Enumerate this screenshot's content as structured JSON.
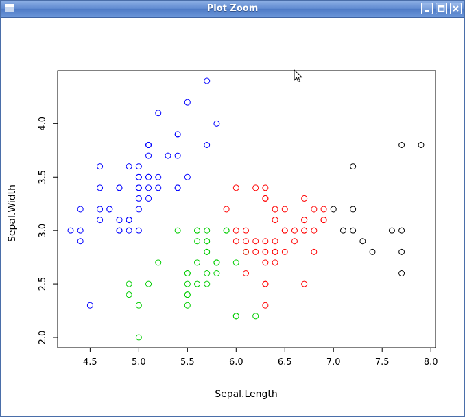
{
  "window": {
    "title": "Plot Zoom"
  },
  "chart_data": {
    "type": "scatter",
    "title": "",
    "xlabel": "Sepal.Length",
    "ylabel": "Sepal.Width",
    "xlim": [
      4.3,
      7.9
    ],
    "ylim": [
      2.0,
      4.4
    ],
    "xticks": [
      4.5,
      5.0,
      5.5,
      6.0,
      6.5,
      7.0,
      7.5,
      8.0
    ],
    "yticks": [
      2.0,
      2.5,
      3.0,
      3.5,
      4.0
    ],
    "xtick_labels": [
      "4.5",
      "5.0",
      "5.5",
      "6.0",
      "6.5",
      "7.0",
      "7.5",
      "8.0"
    ],
    "ytick_labels": [
      "2.0",
      "2.5",
      "3.0",
      "3.5",
      "4.0"
    ],
    "grid": false,
    "legend": "none",
    "series": [
      {
        "color": "#0000ff",
        "x": [
          4.3,
          4.4,
          4.4,
          4.4,
          4.5,
          4.6,
          4.6,
          4.6,
          4.6,
          4.7,
          4.7,
          4.8,
          4.8,
          4.8,
          4.8,
          4.8,
          4.9,
          4.9,
          4.9,
          4.9,
          5.0,
          5.0,
          5.0,
          5.0,
          5.0,
          5.0,
          5.0,
          5.0,
          5.1,
          5.1,
          5.1,
          5.1,
          5.1,
          5.1,
          5.1,
          5.1,
          5.2,
          5.2,
          5.2,
          5.3,
          5.4,
          5.4,
          5.4,
          5.4,
          5.4,
          5.5,
          5.5,
          5.7,
          5.7,
          5.8
        ],
        "y": [
          3.0,
          2.9,
          3.0,
          3.2,
          2.3,
          3.1,
          3.4,
          3.6,
          3.2,
          3.2,
          3.2,
          3.4,
          3.0,
          3.4,
          3.0,
          3.1,
          3.0,
          3.1,
          3.6,
          3.1,
          3.6,
          3.4,
          3.0,
          3.4,
          3.2,
          3.5,
          3.5,
          3.3,
          3.5,
          3.5,
          3.8,
          3.7,
          3.3,
          3.8,
          3.8,
          3.4,
          3.5,
          3.4,
          4.1,
          3.7,
          3.9,
          3.7,
          3.9,
          3.4,
          3.4,
          4.2,
          3.5,
          4.4,
          3.8,
          4.0
        ]
      },
      {
        "color": "#00cd00",
        "x": [
          4.9,
          4.9,
          5.0,
          5.0,
          5.1,
          5.2,
          5.4,
          5.5,
          5.5,
          5.5,
          5.5,
          5.5,
          5.5,
          5.6,
          5.6,
          5.6,
          5.6,
          5.6,
          5.7,
          5.7,
          5.7,
          5.7,
          5.7,
          5.7,
          5.7,
          5.8,
          5.8,
          5.8,
          5.8,
          5.9,
          5.9,
          6.0,
          6.0,
          6.0,
          6.1,
          6.2
        ],
        "y": [
          2.5,
          2.4,
          2.0,
          2.3,
          2.5,
          2.7,
          3.0,
          2.3,
          2.4,
          2.4,
          2.5,
          2.6,
          2.6,
          2.9,
          3.0,
          2.7,
          3.0,
          2.5,
          2.8,
          2.6,
          2.8,
          3.0,
          2.9,
          2.9,
          2.5,
          2.7,
          2.7,
          2.7,
          2.6,
          3.0,
          3.0,
          2.2,
          2.2,
          2.7,
          2.8,
          2.2
        ]
      },
      {
        "color": "#ff0000",
        "x": [
          5.9,
          6.0,
          6.0,
          6.0,
          6.1,
          6.1,
          6.1,
          6.1,
          6.2,
          6.2,
          6.2,
          6.3,
          6.3,
          6.3,
          6.3,
          6.3,
          6.3,
          6.3,
          6.3,
          6.3,
          6.4,
          6.4,
          6.4,
          6.4,
          6.4,
          6.4,
          6.4,
          6.5,
          6.5,
          6.5,
          6.5,
          6.6,
          6.6,
          6.7,
          6.7,
          6.7,
          6.7,
          6.7,
          6.7,
          6.8,
          6.8,
          6.8,
          6.9,
          6.9,
          6.9
        ],
        "y": [
          3.2,
          3.4,
          3.0,
          2.9,
          3.0,
          2.8,
          2.9,
          2.6,
          3.4,
          2.9,
          2.8,
          3.3,
          3.4,
          2.9,
          2.8,
          2.5,
          2.7,
          2.3,
          2.5,
          3.3,
          3.2,
          2.9,
          2.7,
          3.1,
          2.8,
          2.8,
          3.2,
          3.2,
          2.8,
          3.0,
          3.0,
          2.9,
          3.0,
          3.1,
          3.0,
          2.5,
          3.3,
          3.1,
          3.0,
          2.8,
          3.0,
          3.2,
          3.1,
          3.1,
          3.2
        ]
      },
      {
        "color": "#000000",
        "x": [
          7.0,
          7.1,
          7.2,
          7.2,
          7.2,
          7.3,
          7.4,
          7.6,
          7.7,
          7.7,
          7.7,
          7.7,
          7.9
        ],
        "y": [
          3.2,
          3.0,
          3.6,
          3.2,
          3.0,
          2.9,
          2.8,
          3.0,
          3.8,
          2.6,
          2.8,
          3.0,
          3.8
        ]
      }
    ]
  }
}
